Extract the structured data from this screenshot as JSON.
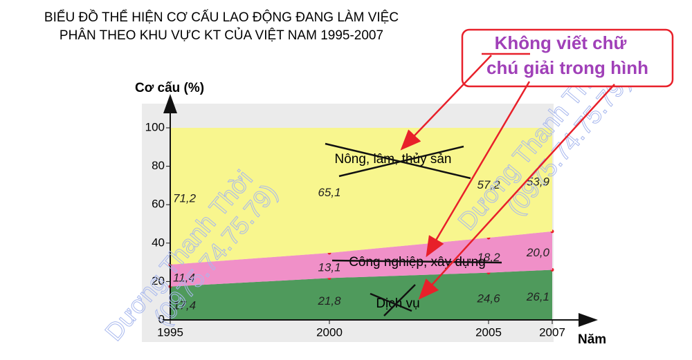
{
  "chart_data": {
    "type": "stacked-area",
    "title": [
      "BIỂU ĐỒ THỂ HIỆN CƠ CẤU LAO ĐỘNG ĐANG LÀM VIỆC",
      "PHÂN THEO KHU VỰC KT CỦA VIỆT NAM 1995-2007"
    ],
    "y_label": "Cơ cấu (%)",
    "x_label": "Năm",
    "x": [
      1995,
      2000,
      2005,
      2007
    ],
    "xlim": [
      1995,
      2007
    ],
    "xticks": [
      1995,
      2000,
      2005,
      2007
    ],
    "ylim": [
      0,
      100
    ],
    "yticks": [
      0,
      20,
      40,
      60,
      80,
      100
    ],
    "series": [
      {
        "name": "Dịch vụ",
        "color": "#4f9a5c",
        "values": [
          17.4,
          21.8,
          24.6,
          26.1
        ],
        "value_labels": [
          "17,4",
          "21,8",
          "24,6",
          "26,1"
        ]
      },
      {
        "name": "Công nghiệp, xây dựng",
        "color": "#f090c8",
        "values": [
          11.4,
          13.1,
          18.2,
          20.0
        ],
        "value_labels": [
          "11,4",
          "13,1",
          "18,2",
          "20,0"
        ]
      },
      {
        "name": "Nông, lâm, thủy sản",
        "color": "#f8f68e",
        "values": [
          71.2,
          65.1,
          57.2,
          53.9
        ],
        "value_labels": [
          "71,2",
          "65,1",
          "57,2",
          "53,9"
        ]
      }
    ],
    "callout": [
      "Không viết chữ",
      "chú giải trong hình"
    ],
    "watermark": [
      "Dương Thanh Thời",
      "(0975.74.75.79)"
    ]
  }
}
